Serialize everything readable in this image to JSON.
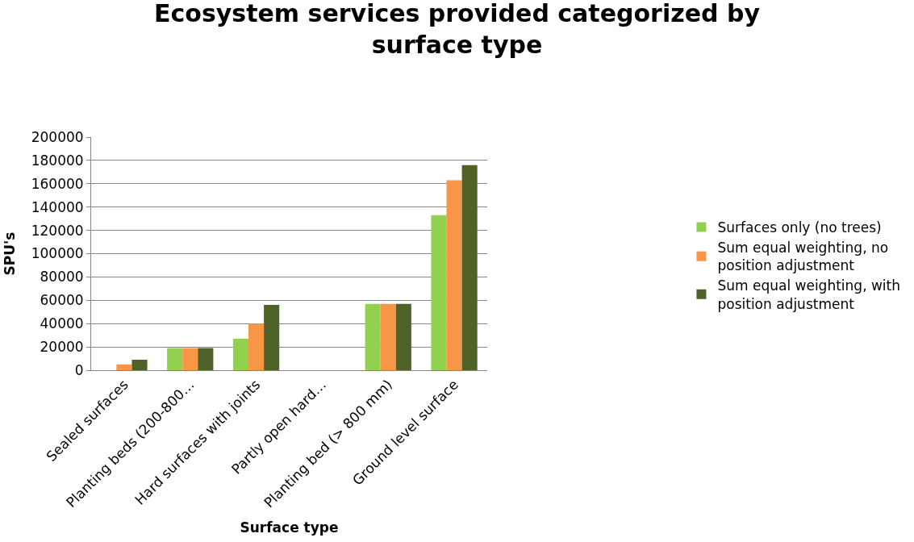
{
  "chart_data": {
    "type": "bar",
    "title": "Ecosystem services provided categorized by surface type",
    "xlabel": "Surface type",
    "ylabel": "SPU's",
    "categories": [
      "Sealed surfaces",
      "Planting beds (200-800…",
      "Hard surfaces with joints",
      "Partly open hard…",
      "Planting bed (> 800 mm)",
      "Ground level surface"
    ],
    "series": [
      {
        "name": "Surfaces only (no trees)",
        "color": "#92d050",
        "values": [
          0,
          19000,
          27000,
          0,
          57000,
          133000
        ]
      },
      {
        "name": "Sum equal weighting, no position adjustment",
        "color": "#f79646",
        "values": [
          5000,
          19000,
          40000,
          0,
          57000,
          163000
        ]
      },
      {
        "name": "Sum equal weighting, with position adjustment",
        "color": "#4f6228",
        "values": [
          9000,
          19000,
          56000,
          0,
          57000,
          176000
        ]
      }
    ],
    "ylim": [
      0,
      200000
    ],
    "yticks": [
      0,
      20000,
      40000,
      60000,
      80000,
      100000,
      120000,
      140000,
      160000,
      180000,
      200000
    ],
    "grid": "y",
    "legend": "right"
  }
}
